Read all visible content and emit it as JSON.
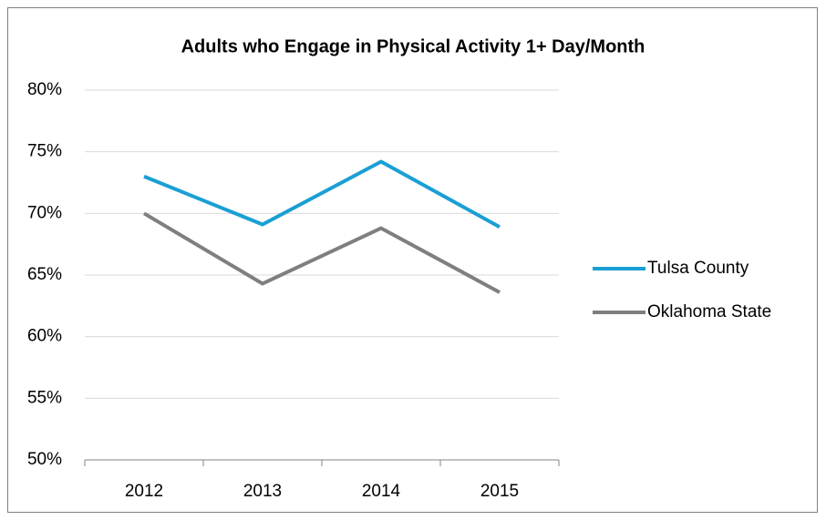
{
  "chart_data": {
    "type": "line",
    "title": "Adults who Engage in Physical Activity 1+ Day/Month",
    "categories": [
      "2012",
      "2013",
      "2014",
      "2015"
    ],
    "series": [
      {
        "name": "Tulsa County",
        "color": "#1a9fd4",
        "values": [
          73.0,
          69.1,
          74.2,
          68.9
        ]
      },
      {
        "name": "Oklahoma State",
        "color": "#7f7f7f",
        "values": [
          70.0,
          64.3,
          68.8,
          63.6
        ]
      }
    ],
    "ylim": [
      50,
      80
    ],
    "yticks": [
      {
        "value": 50,
        "label": "50%"
      },
      {
        "value": 55,
        "label": "55%"
      },
      {
        "value": 60,
        "label": "60%"
      },
      {
        "value": 65,
        "label": "65%"
      },
      {
        "value": 70,
        "label": "70%"
      },
      {
        "value": 75,
        "label": "75%"
      },
      {
        "value": 80,
        "label": "80%"
      }
    ],
    "grid": true,
    "legend": "right"
  }
}
